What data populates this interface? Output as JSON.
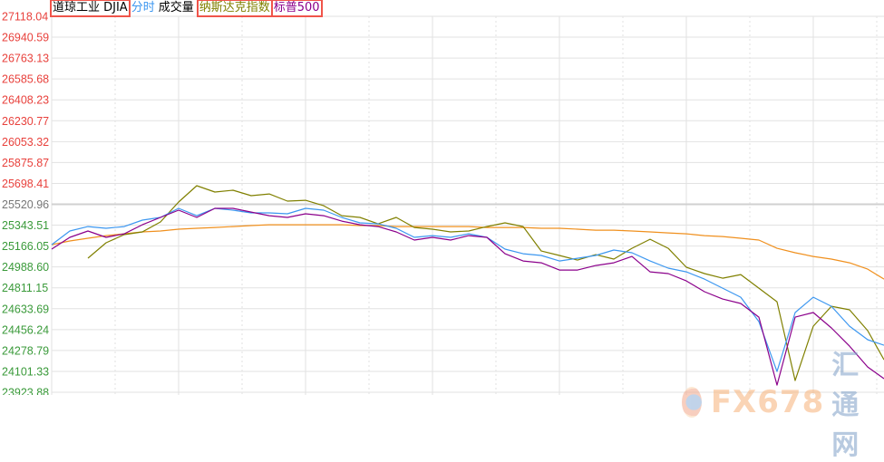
{
  "legend": {
    "djia": "道琼工业 DJIA",
    "intraday": "分时",
    "volume": "成交量",
    "nasdaq": "纳斯达克指数",
    "sp500": "标普500"
  },
  "watermark": {
    "brand": "FX678",
    "name": "汇通网"
  },
  "colors": {
    "djia": "#3c97f0",
    "sp500": "#8b008b",
    "nasdaq": "#808000",
    "average": "#f0901e",
    "axis_up": "#e8413c",
    "axis_base": "#777777",
    "axis_down": "#3a9a3a",
    "grid": "#e2e2e2"
  },
  "chart_data": {
    "type": "line",
    "title": "",
    "xlabel": "",
    "ylabel": "",
    "ylim": [
      23923.88,
      27118.04
    ],
    "baseline": 25520.96,
    "grid": true,
    "y_ticks": [
      "27118.04",
      "26940.59",
      "26763.13",
      "26585.68",
      "26408.23",
      "26230.77",
      "26053.32",
      "25875.87",
      "25698.41",
      "25520.96",
      "25343.51",
      "25166.05",
      "24988.60",
      "24811.15",
      "24633.69",
      "24456.24",
      "24278.79",
      "24101.33",
      "23923.88"
    ],
    "series": [
      {
        "name": "道琼工业 DJIA",
        "color_key": "djia",
        "values": [
          25178,
          25294,
          25332,
          25317,
          25332,
          25386,
          25409,
          25486,
          25424,
          25486,
          25471,
          25448,
          25448,
          25440,
          25486,
          25471,
          25409,
          25363,
          25355,
          25317,
          25240,
          25255,
          25240,
          25270,
          25240,
          25140,
          25101,
          25086,
          25039,
          25062,
          25086,
          25132,
          25109,
          25039,
          24978,
          24947,
          24885,
          24808,
          24731,
          24524,
          24100,
          24601,
          24731,
          24654,
          24485,
          24370,
          24323
        ]
      },
      {
        "name": "标普500",
        "color_key": "sp500",
        "values": [
          25140,
          25240,
          25294,
          25240,
          25270,
          25347,
          25409,
          25471,
          25409,
          25486,
          25486,
          25455,
          25424,
          25409,
          25440,
          25424,
          25378,
          25347,
          25332,
          25286,
          25217,
          25240,
          25217,
          25255,
          25240,
          25101,
          25039,
          25024,
          24962,
          24962,
          25001,
          25024,
          25078,
          24947,
          24932,
          24870,
          24778,
          24716,
          24678,
          24562,
          23985,
          24562,
          24601,
          24470,
          24316,
          24139,
          24039
        ]
      },
      {
        "name": "纳斯达克指数",
        "color_key": "nasdaq",
        "values": [
          null,
          null,
          25063,
          25194,
          25263,
          25286,
          25371,
          25540,
          25679,
          25625,
          25640,
          25594,
          25609,
          25548,
          25555,
          25509,
          25424,
          25409,
          25355,
          25409,
          25324,
          25309,
          25286,
          25294,
          25332,
          25363,
          25332,
          25124,
          25086,
          25047,
          25093,
          25055,
          25147,
          25224,
          25147,
          24986,
          24932,
          24893,
          24924,
          24808,
          24693,
          24023,
          24485,
          24654,
          24624,
          24447,
          24200
        ]
      },
      {
        "color_key": "average",
        "values": [
          25178,
          25209,
          25232,
          25255,
          25270,
          25286,
          25294,
          25309,
          25317,
          25324,
          25332,
          25340,
          25347,
          25347,
          25347,
          25347,
          25347,
          25340,
          25340,
          25332,
          25332,
          25332,
          25332,
          25332,
          25324,
          25324,
          25324,
          25317,
          25317,
          25309,
          25301,
          25301,
          25294,
          25286,
          25278,
          25270,
          25255,
          25247,
          25232,
          25217,
          25147,
          25109,
          25078,
          25055,
          25024,
          24970,
          24885
        ]
      }
    ]
  }
}
